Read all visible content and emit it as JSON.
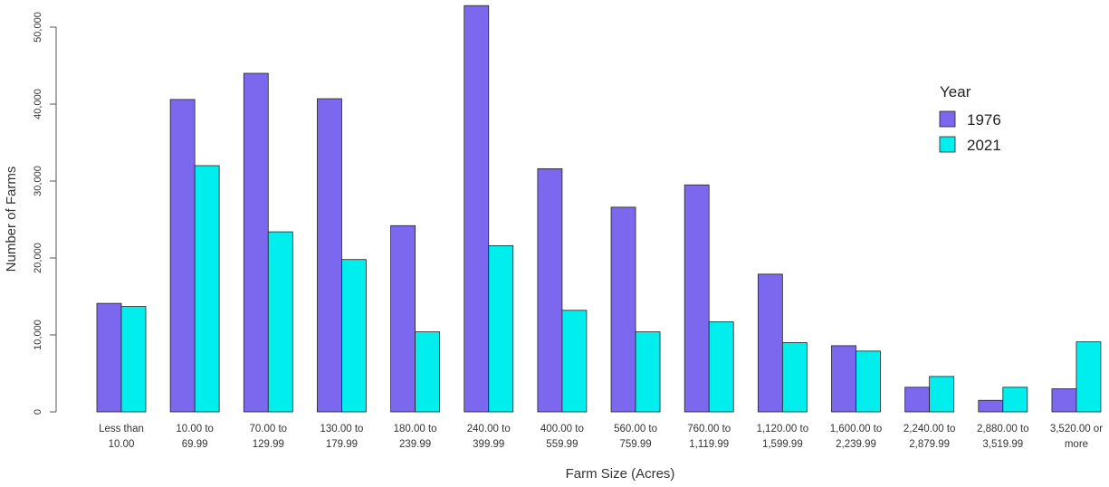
{
  "chart_data": {
    "type": "bar",
    "xlabel": "Farm Size (Acres)",
    "ylabel": "Number of Farms",
    "ylim": [
      0,
      50000
    ],
    "yticks": [
      "0",
      "10,000",
      "20,000",
      "30,000",
      "40,000",
      "50,000"
    ],
    "ytick_values": [
      0,
      10000,
      20000,
      30000,
      40000,
      50000
    ],
    "categories": [
      [
        "Less than",
        "10.00"
      ],
      [
        "10.00 to",
        "69.99"
      ],
      [
        "70.00 to",
        "129.99"
      ],
      [
        "130.00 to",
        "179.99"
      ],
      [
        "180.00 to",
        "239.99"
      ],
      [
        "240.00 to",
        "399.99"
      ],
      [
        "400.00 to",
        "559.99"
      ],
      [
        "560.00 to",
        "759.99"
      ],
      [
        "760.00 to",
        "1,119.99"
      ],
      [
        "1,120.00 to",
        "1,599.99"
      ],
      [
        "1,600.00 to",
        "2,239.99"
      ],
      [
        "2,240.00 to",
        "2,879.99"
      ],
      [
        "2,880.00 to",
        "3,519.99"
      ],
      [
        "3,520.00 or",
        "more"
      ]
    ],
    "series": [
      {
        "name": "1976",
        "color": "#7B68EE",
        "values": [
          14100,
          40600,
          44000,
          40700,
          24200,
          52800,
          31600,
          26600,
          29500,
          17900,
          8600,
          3200,
          1500,
          3000
        ]
      },
      {
        "name": "2021",
        "color": "#00EEEE",
        "values": [
          13700,
          32000,
          23400,
          19800,
          10400,
          21600,
          13200,
          10400,
          11700,
          9000,
          7900,
          4600,
          3200,
          9100
        ]
      }
    ],
    "legend": {
      "title": "Year",
      "position": "right"
    },
    "grid": false
  }
}
